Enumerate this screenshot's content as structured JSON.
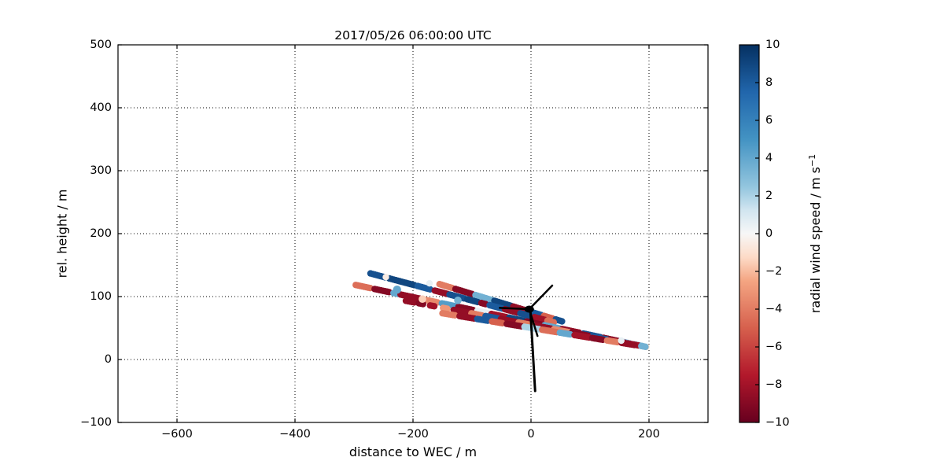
{
  "chart_data": {
    "type": "scatter",
    "title": "2017/05/26 06:00:00 UTC",
    "xlabel": "distance to WEC / m",
    "ylabel": "rel. height / m",
    "xlim": [
      -700,
      300
    ],
    "ylim": [
      -100,
      500
    ],
    "xticks": {
      "values": [
        -600,
        -400,
        -200,
        0,
        200
      ],
      "labels": [
        "−600",
        "−400",
        "−200",
        "0",
        "200"
      ]
    },
    "yticks": {
      "values": [
        -100,
        0,
        100,
        200,
        300,
        400,
        500
      ],
      "labels": [
        "−100",
        "0",
        "100",
        "200",
        "300",
        "400",
        "500"
      ]
    },
    "grid": {
      "style": "dotted",
      "color": "#000000"
    },
    "colorbar": {
      "label_main": "radial wind speed / m s",
      "label_exponent": "−1",
      "lim": [
        -10,
        10
      ],
      "ticks": {
        "values": [
          10,
          8,
          6,
          4,
          2,
          0,
          -2,
          -4,
          -6,
          -8,
          -10
        ],
        "labels": [
          "10",
          "8",
          "6",
          "4",
          "2",
          "0",
          "−2",
          "−4",
          "−6",
          "−8",
          "−10"
        ]
      },
      "cmap_name": "RdBu",
      "cmap_stops": [
        [
          0.0,
          "#67001f"
        ],
        [
          0.125,
          "#b2182b"
        ],
        [
          0.25,
          "#d6604d"
        ],
        [
          0.375,
          "#f4a582"
        ],
        [
          0.4375,
          "#fddbc7"
        ],
        [
          0.5,
          "#f7f7f7"
        ],
        [
          0.5625,
          "#d1e5f0"
        ],
        [
          0.625,
          "#92c5de"
        ],
        [
          0.75,
          "#4393c3"
        ],
        [
          0.875,
          "#2166ac"
        ],
        [
          1.0,
          "#053061"
        ]
      ]
    },
    "lidar_convergence_point": {
      "x_m": 195,
      "h_m": 20
    },
    "dot_radius_px": 4.2,
    "dot_step_m": 3.5,
    "beams": [
      {
        "elevation_slope": 0.285,
        "segments": [
          [
            -155,
            -132,
            -4
          ],
          [
            -128,
            -98,
            -9
          ],
          [
            -94,
            -66,
            3.5
          ],
          [
            -62,
            -34,
            9
          ],
          [
            -30,
            -8,
            -8.5
          ],
          [
            -4,
            18,
            8
          ],
          [
            22,
            38,
            -5
          ],
          [
            42,
            55,
            8.5
          ]
        ]
      },
      {
        "elevation_slope": 0.25,
        "segments": [
          [
            -272,
            -246,
            8.5
          ],
          [
            -240,
            -196,
            9
          ],
          [
            -192,
            -168,
            8
          ],
          [
            -163,
            -142,
            -8.5
          ],
          [
            -138,
            -112,
            8.5
          ],
          [
            -108,
            -88,
            9
          ],
          [
            -84,
            -74,
            -9
          ],
          [
            -70,
            -48,
            8
          ],
          [
            -44,
            -22,
            -8.5
          ],
          [
            -18,
            2,
            8.5
          ],
          [
            6,
            24,
            -8
          ],
          [
            28,
            40,
            -4.5
          ]
        ]
      },
      {
        "elevation_slope": 0.2,
        "segments": [
          [
            -297,
            -270,
            -4.5
          ],
          [
            -265,
            -238,
            -9
          ],
          [
            -233,
            -226,
            4
          ],
          [
            -221,
            -188,
            -8.5
          ],
          [
            -183,
            -156,
            -3.5
          ],
          [
            -151,
            -128,
            4.5
          ],
          [
            -123,
            -96,
            -9
          ],
          [
            -91,
            -72,
            0.5
          ],
          [
            -67,
            -42,
            -8
          ],
          [
            -37,
            -12,
            9
          ],
          [
            -7,
            18,
            -9
          ],
          [
            23,
            48,
            4
          ],
          [
            53,
            84,
            -8.5
          ],
          [
            89,
            118,
            8.5
          ],
          [
            123,
            148,
            -9
          ],
          [
            153,
            170,
            4
          ],
          [
            174,
            189,
            3.5
          ],
          [
            192,
            197,
            -1
          ]
        ]
      },
      {
        "elevation_slope": 0.18,
        "segments": [
          [
            -212,
            -198,
            -8.5
          ],
          [
            -190,
            -183,
            -9
          ],
          [
            -171,
            -163,
            -8
          ],
          [
            -149,
            -141,
            -3
          ],
          [
            -131,
            -106,
            -8.5
          ],
          [
            -101,
            -82,
            -4
          ],
          [
            -77,
            -56,
            8
          ],
          [
            -51,
            -26,
            -8.5
          ],
          [
            -21,
            4,
            -4
          ],
          [
            9,
            34,
            -8.5
          ],
          [
            39,
            64,
            -3.5
          ],
          [
            69,
            99,
            -9
          ],
          [
            104,
            129,
            8
          ],
          [
            134,
            159,
            -8.5
          ],
          [
            164,
            184,
            -8
          ],
          [
            187,
            196,
            3.5
          ]
        ]
      },
      {
        "elevation_slope": 0.155,
        "segments": [
          [
            -150,
            -126,
            -4
          ],
          [
            -121,
            -96,
            -8.5
          ],
          [
            -91,
            -71,
            8
          ],
          [
            -66,
            -46,
            -5
          ],
          [
            -41,
            -16,
            -9
          ],
          [
            -11,
            14,
            2
          ],
          [
            19,
            44,
            -4.5
          ],
          [
            49,
            69,
            4
          ],
          [
            74,
            99,
            -8
          ],
          [
            104,
            124,
            -9
          ],
          [
            129,
            149,
            -4
          ],
          [
            154,
            178,
            -8.5
          ]
        ]
      }
    ],
    "extra_dots": [
      {
        "x": -227,
        "h": 111,
        "v": 4,
        "r": 5.2
      },
      {
        "x": -246,
        "h": 131,
        "v": -0.5,
        "r": 4.2
      },
      {
        "x": -172,
        "h": 121,
        "v": 0.5,
        "r": 4.2
      },
      {
        "x": -184,
        "h": 96,
        "v": -1.5,
        "r": 4.8
      },
      {
        "x": -124,
        "h": 94,
        "v": 3.5,
        "r": 4.8
      },
      {
        "x": 153,
        "h": 30,
        "v": 0.5,
        "r": 4.2
      }
    ],
    "turbine": {
      "color": "#000000",
      "hub": {
        "x": -3,
        "h": 80
      },
      "blade_tips": [
        {
          "x": 36,
          "h": 117.5
        },
        {
          "x": -53,
          "h": 82
        },
        {
          "x": 11,
          "h": 37.5
        }
      ],
      "tower_base": {
        "x": 7,
        "h": -50
      }
    }
  }
}
